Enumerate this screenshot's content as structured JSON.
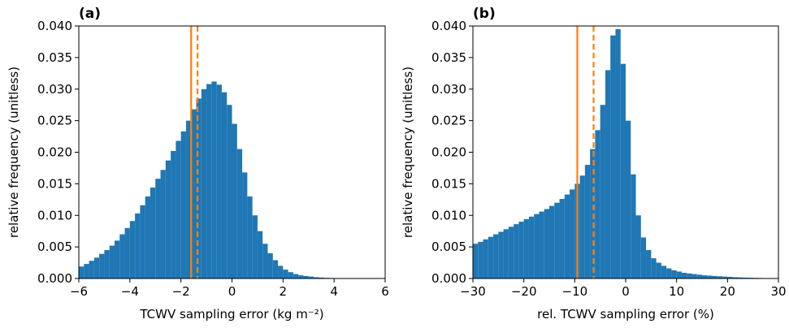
{
  "chart_data": [
    {
      "type": "histogram",
      "title": "(a)",
      "xlabel": "TCWV sampling error (kg m⁻²)",
      "ylabel": "relative frequency (unitless)",
      "color": "#1f77b4",
      "bins": [
        -6,
        -5.8,
        -5.6,
        -5.4,
        -5.2,
        -5,
        -4.8,
        -4.6,
        -4.4,
        -4.2,
        -4,
        -3.8,
        -3.6,
        -3.4,
        -3.2,
        -3,
        -2.8,
        -2.6,
        -2.4,
        -2.2,
        -2,
        -1.8,
        -1.6,
        -1.4,
        -1.2,
        -1,
        -0.8,
        -0.6,
        -0.4,
        -0.2,
        0,
        0.2,
        0.4,
        0.6,
        0.8,
        1,
        1.2,
        1.4,
        1.6,
        1.8,
        2,
        2.2,
        2.4,
        2.6,
        2.8,
        3,
        3.2,
        3.4,
        3.6,
        3.8,
        4,
        4.2,
        4.4,
        4.6,
        4.8,
        5,
        5.2,
        5.4,
        5.6,
        5.8,
        6
      ],
      "values": [
        0.0019,
        0.0023,
        0.0028,
        0.0033,
        0.0039,
        0.0045,
        0.0052,
        0.006,
        0.007,
        0.008,
        0.0091,
        0.0103,
        0.0116,
        0.013,
        0.0144,
        0.0158,
        0.0172,
        0.0187,
        0.0202,
        0.0218,
        0.0233,
        0.025,
        0.0268,
        0.0285,
        0.03,
        0.0308,
        0.0312,
        0.0307,
        0.0295,
        0.0275,
        0.0245,
        0.0205,
        0.0168,
        0.013,
        0.01,
        0.0075,
        0.0055,
        0.004,
        0.0029,
        0.002,
        0.0014,
        0.001,
        0.0007,
        0.0005,
        0.0004,
        0.0003,
        0.0002,
        0.00015,
        0.0001,
        8e-05,
        6e-05,
        4e-05,
        3e-05,
        2e-05,
        1e-05,
        0,
        0,
        0,
        0,
        0
      ],
      "lines": [
        {
          "x": -1.6,
          "style": "solid"
        },
        {
          "x": -1.35,
          "style": "dashed"
        }
      ],
      "line_color": "#ff7f0e",
      "xlim": [
        -6,
        6
      ],
      "ylim": [
        0,
        0.04
      ],
      "xticks": [
        {
          "value": -6,
          "label": "−6"
        },
        {
          "value": -4,
          "label": "−4"
        },
        {
          "value": -2,
          "label": "−2"
        },
        0,
        2,
        4,
        6
      ],
      "yticks": [
        {
          "value": 0,
          "label": "0.000"
        },
        {
          "value": 0.005,
          "label": "0.005"
        },
        {
          "value": 0.01,
          "label": "0.010"
        },
        {
          "value": 0.015,
          "label": "0.015"
        },
        {
          "value": 0.02,
          "label": "0.020"
        },
        {
          "value": 0.025,
          "label": "0.025"
        },
        {
          "value": 0.03,
          "label": "0.030"
        },
        {
          "value": 0.035,
          "label": "0.035"
        },
        {
          "value": 0.04,
          "label": "0.040"
        }
      ]
    },
    {
      "type": "histogram",
      "title": "(b)",
      "xlabel": "rel. TCWV sampling error (%)",
      "ylabel": "relative frequency (unitless)",
      "color": "#1f77b4",
      "bins": [
        -30,
        -29,
        -28,
        -27,
        -26,
        -25,
        -24,
        -23,
        -22,
        -21,
        -20,
        -19,
        -18,
        -17,
        -16,
        -15,
        -14,
        -13,
        -12,
        -11,
        -10,
        -9,
        -8,
        -7,
        -6,
        -5,
        -4,
        -3,
        -2,
        -1,
        0,
        1,
        2,
        3,
        4,
        5,
        6,
        7,
        8,
        9,
        10,
        11,
        12,
        13,
        14,
        15,
        16,
        17,
        18,
        19,
        20,
        21,
        22,
        23,
        24,
        25,
        26,
        27,
        28,
        29,
        30
      ],
      "values": [
        0.0055,
        0.0058,
        0.0062,
        0.0066,
        0.007,
        0.0074,
        0.0078,
        0.0082,
        0.0086,
        0.009,
        0.0094,
        0.0098,
        0.0102,
        0.0106,
        0.011,
        0.0115,
        0.012,
        0.0126,
        0.0133,
        0.0141,
        0.015,
        0.0163,
        0.018,
        0.0205,
        0.0235,
        0.0275,
        0.033,
        0.0385,
        0.0395,
        0.034,
        0.025,
        0.0165,
        0.01,
        0.0065,
        0.0045,
        0.0032,
        0.0025,
        0.002,
        0.0016,
        0.0013,
        0.0011,
        0.0009,
        0.0008,
        0.0007,
        0.0006,
        0.0005,
        0.00045,
        0.0004,
        0.00035,
        0.0003,
        0.00025,
        0.0002,
        0.00017,
        0.00014,
        0.00012,
        0.0001,
        8e-05,
        6e-05,
        5e-05,
        4e-05
      ],
      "lines": [
        {
          "x": -9.5,
          "style": "solid"
        },
        {
          "x": -6.3,
          "style": "dashed"
        }
      ],
      "line_color": "#ff7f0e",
      "xlim": [
        -30,
        30
      ],
      "ylim": [
        0,
        0.04
      ],
      "xticks": [
        {
          "value": -30,
          "label": "−30"
        },
        {
          "value": -20,
          "label": "−20"
        },
        {
          "value": -10,
          "label": "−10"
        },
        0,
        10,
        20,
        30
      ],
      "yticks": [
        {
          "value": 0,
          "label": "0.000"
        },
        {
          "value": 0.005,
          "label": "0.005"
        },
        {
          "value": 0.01,
          "label": "0.010"
        },
        {
          "value": 0.015,
          "label": "0.015"
        },
        {
          "value": 0.02,
          "label": "0.020"
        },
        {
          "value": 0.025,
          "label": "0.025"
        },
        {
          "value": 0.03,
          "label": "0.030"
        },
        {
          "value": 0.035,
          "label": "0.035"
        },
        {
          "value": 0.04,
          "label": "0.040"
        }
      ]
    }
  ]
}
